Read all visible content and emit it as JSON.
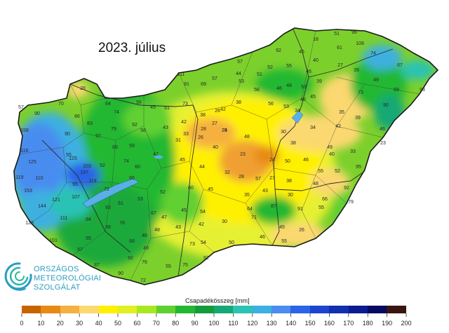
{
  "title": "2023. július",
  "legend": {
    "title": "Csapadékösszeg [mm]",
    "ticks": [
      "0",
      "10",
      "20",
      "30",
      "40",
      "50",
      "60",
      "70",
      "80",
      "90",
      "100",
      "110",
      "120",
      "130",
      "140",
      "150",
      "160",
      "170",
      "180",
      "190",
      "200"
    ],
    "colors": [
      "#c86400",
      "#e68a14",
      "#f5b040",
      "#fbd870",
      "#fff000",
      "#e0f020",
      "#a8e820",
      "#60d030",
      "#22b830",
      "#149c3c",
      "#16a874",
      "#2cc2b4",
      "#3cb0e0",
      "#4a8cf0",
      "#2a64e8",
      "#1c46d0",
      "#1030b0",
      "#0a1c90",
      "#060a60",
      "#3a1410"
    ]
  },
  "logo": {
    "line1": "ORSZÁGOS",
    "line2": "METEOROLÓGIAI",
    "line3": "SZOLGÁLAT",
    "icon": "omsz-swirl-logo-icon"
  },
  "stations": [
    [
      "18",
      450,
      58
    ],
    [
      "51",
      480,
      50
    ],
    [
      "96",
      505,
      48
    ],
    [
      "61",
      484,
      70
    ],
    [
      "74",
      532,
      78
    ],
    [
      "108",
      513,
      64
    ],
    [
      "92",
      397,
      74
    ],
    [
      "45",
      430,
      76
    ],
    [
      "55",
      412,
      96
    ],
    [
      "40",
      450,
      88
    ],
    [
      "27",
      485,
      95
    ],
    [
      "39",
      508,
      102
    ],
    [
      "49",
      536,
      116
    ],
    [
      "67",
      570,
      95
    ],
    [
      "93",
      602,
      130
    ],
    [
      "69",
      565,
      130
    ],
    [
      "73",
      514,
      134
    ],
    [
      "90",
      550,
      152
    ],
    [
      "46",
      440,
      104
    ],
    [
      "52",
      385,
      98
    ],
    [
      "57",
      342,
      90
    ],
    [
      "111",
      258,
      108
    ],
    [
      "81",
      266,
      122
    ],
    [
      "69",
      290,
      122
    ],
    [
      "57",
      306,
      114
    ],
    [
      "44",
      340,
      107
    ],
    [
      "51",
      370,
      108
    ],
    [
      "53",
      344,
      118
    ],
    [
      "56",
      366,
      130
    ],
    [
      "46",
      398,
      128
    ],
    [
      "48",
      412,
      124
    ],
    [
      "53",
      433,
      126
    ],
    [
      "39",
      455,
      118
    ],
    [
      "28",
      118,
      128
    ],
    [
      "57",
      30,
      155
    ],
    [
      "90",
      53,
      164
    ],
    [
      "70",
      87,
      150
    ],
    [
      "86",
      110,
      168
    ],
    [
      "64",
      154,
      150
    ],
    [
      "74",
      166,
      162
    ],
    [
      "56",
      198,
      148
    ],
    [
      "45",
      218,
      155
    ],
    [
      "61",
      238,
      156
    ],
    [
      "73",
      264,
      150
    ],
    [
      "56",
      386,
      150
    ],
    [
      "26",
      310,
      160
    ],
    [
      "38",
      340,
      148
    ],
    [
      "42",
      318,
      158
    ],
    [
      "53",
      408,
      154
    ],
    [
      "48",
      432,
      144
    ],
    [
      "45",
      446,
      140
    ],
    [
      "34",
      424,
      160
    ],
    [
      "34",
      446,
      184
    ],
    [
      "42",
      482,
      182
    ],
    [
      "35",
      487,
      162
    ],
    [
      "39",
      510,
      170
    ],
    [
      "46",
      545,
      186
    ],
    [
      "156",
      35,
      188
    ],
    [
      "90",
      96,
      193
    ],
    [
      "83",
      128,
      178
    ],
    [
      "79",
      162,
      186
    ],
    [
      "92",
      192,
      180
    ],
    [
      "58",
      204,
      188
    ],
    [
      "43",
      236,
      184
    ],
    [
      "42",
      262,
      176
    ],
    [
      "38",
      289,
      166
    ],
    [
      "28",
      290,
      186
    ],
    [
      "27",
      306,
      178
    ],
    [
      "25",
      320,
      188
    ],
    [
      "48",
      352,
      197
    ],
    [
      "30",
      404,
      190
    ],
    [
      "38",
      418,
      206
    ],
    [
      "49",
      470,
      212
    ],
    [
      "33",
      503,
      218
    ],
    [
      "23",
      546,
      206
    ],
    [
      "116",
      35,
      217
    ],
    [
      "55",
      98,
      223
    ],
    [
      "97",
      140,
      196
    ],
    [
      "83",
      164,
      212
    ],
    [
      "59",
      188,
      210
    ],
    [
      "31",
      254,
      202
    ],
    [
      "33",
      265,
      193
    ],
    [
      "26",
      286,
      198
    ],
    [
      "40",
      307,
      212
    ],
    [
      "23",
      346,
      222
    ],
    [
      "24",
      388,
      230
    ],
    [
      "50",
      410,
      232
    ],
    [
      "46",
      436,
      230
    ],
    [
      "55",
      457,
      246
    ],
    [
      "40",
      473,
      222
    ],
    [
      "95",
      511,
      240
    ],
    [
      "125",
      46,
      233
    ],
    [
      "110",
      56,
      256
    ],
    [
      "125",
      104,
      228
    ],
    [
      "103",
      124,
      239
    ],
    [
      "52",
      146,
      238
    ],
    [
      "74",
      180,
      232
    ],
    [
      "60",
      196,
      240
    ],
    [
      "47",
      222,
      222
    ],
    [
      "45",
      260,
      230
    ],
    [
      "44",
      288,
      240
    ],
    [
      "32",
      324,
      248
    ],
    [
      "28",
      344,
      254
    ],
    [
      "57",
      368,
      257
    ],
    [
      "27",
      388,
      256
    ],
    [
      "38",
      412,
      260
    ],
    [
      "48",
      450,
      264
    ],
    [
      "52",
      481,
      246
    ],
    [
      "92",
      494,
      270
    ],
    [
      "119",
      28,
      255
    ],
    [
      "197",
      120,
      248
    ],
    [
      "119",
      132,
      260
    ],
    [
      "95",
      107,
      265
    ],
    [
      "72",
      152,
      272
    ],
    [
      "66",
      188,
      256
    ],
    [
      "52",
      232,
      276
    ],
    [
      "60",
      272,
      270
    ],
    [
      "45",
      300,
      272
    ],
    [
      "35",
      352,
      280
    ],
    [
      "43",
      378,
      274
    ],
    [
      "30",
      414,
      280
    ],
    [
      "66",
      463,
      286
    ],
    [
      "79",
      500,
      290
    ],
    [
      "153",
      40,
      274
    ],
    [
      "121",
      80,
      287
    ],
    [
      "107",
      108,
      283
    ],
    [
      "83",
      154,
      298
    ],
    [
      "61",
      172,
      292
    ],
    [
      "53",
      200,
      286
    ],
    [
      "67",
      219,
      306
    ],
    [
      "45",
      262,
      302
    ],
    [
      "54",
      289,
      304
    ],
    [
      "64",
      356,
      300
    ],
    [
      "87",
      390,
      296
    ],
    [
      "91",
      428,
      300
    ],
    [
      "55",
      458,
      298
    ],
    [
      "144",
      60,
      296
    ],
    [
      "84",
      126,
      315
    ],
    [
      "68",
      154,
      326
    ],
    [
      "78",
      174,
      320
    ],
    [
      "47",
      234,
      312
    ],
    [
      "43",
      254,
      326
    ],
    [
      "42",
      287,
      322
    ],
    [
      "30",
      320,
      318
    ],
    [
      "71",
      362,
      312
    ],
    [
      "45",
      402,
      326
    ],
    [
      "26",
      430,
      330
    ],
    [
      "128",
      42,
      320
    ],
    [
      "111",
      91,
      313
    ],
    [
      "48",
      224,
      330
    ],
    [
      "68",
      188,
      346
    ],
    [
      "46",
      206,
      338
    ],
    [
      "73",
      274,
      350
    ],
    [
      "54",
      290,
      348
    ],
    [
      "50",
      330,
      348
    ],
    [
      "46",
      374,
      340
    ],
    [
      "55",
      405,
      346
    ],
    [
      "101",
      76,
      345
    ],
    [
      "55",
      126,
      342
    ],
    [
      "57",
      114,
      358
    ],
    [
      "87",
      138,
      380
    ],
    [
      "49",
      208,
      356
    ],
    [
      "62",
      294,
      370
    ],
    [
      "92",
      186,
      370
    ],
    [
      "76",
      206,
      376
    ],
    [
      "55",
      240,
      382
    ],
    [
      "75",
      264,
      380
    ],
    [
      "90",
      172,
      392
    ],
    [
      "72",
      204,
      402
    ],
    [
      "24",
      320,
      188
    ]
  ]
}
